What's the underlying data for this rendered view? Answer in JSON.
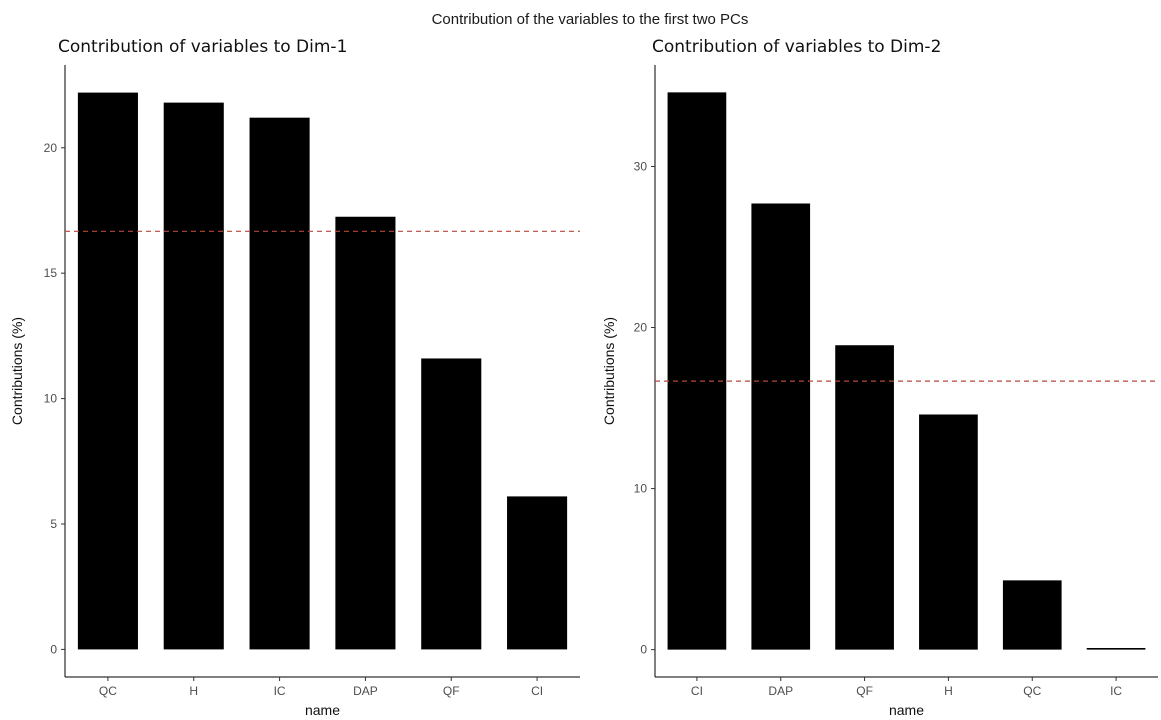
{
  "figure": {
    "suptitle": "Contribution of the variables to the first two PCs"
  },
  "colors": {
    "bar": "#000000",
    "reference_line": "#b5473a"
  },
  "chart_data": [
    {
      "type": "bar",
      "title": "Contribution of variables to Dim-1",
      "xlabel": "name",
      "ylabel": "Contributions (%)",
      "categories": [
        "QC",
        "H",
        "IC",
        "DAP",
        "QF",
        "CI"
      ],
      "values": [
        22.2,
        21.8,
        21.2,
        17.25,
        11.6,
        6.1
      ],
      "yticks": [
        0,
        5,
        10,
        15,
        20
      ],
      "ylim": [
        -1.1,
        23.3
      ],
      "reference_value": 16.67,
      "grid": false
    },
    {
      "type": "bar",
      "title": "Contribution of variables to Dim-2",
      "xlabel": "name",
      "ylabel": "Contributions (%)",
      "categories": [
        "CI",
        "DAP",
        "QF",
        "H",
        "QC",
        "IC"
      ],
      "values": [
        34.6,
        27.7,
        18.9,
        14.6,
        4.3,
        0.1
      ],
      "yticks": [
        0,
        10,
        20,
        30
      ],
      "ylim": [
        -1.7,
        36.3
      ],
      "reference_value": 16.67,
      "grid": false
    }
  ]
}
